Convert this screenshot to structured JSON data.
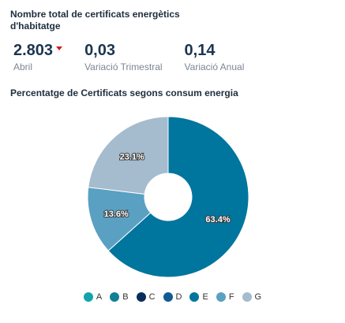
{
  "header": {
    "title": "Nombre total de certificats energètics d'habitatge"
  },
  "kpis": [
    {
      "value": "2.803",
      "label": "Abril",
      "trend": "down"
    },
    {
      "value": "0,03",
      "label": "Variació Trimestral"
    },
    {
      "value": "0,14",
      "label": "Variació Anual"
    }
  ],
  "chart_data": {
    "type": "pie",
    "title": "Percentatge de Certificats segons consum energia",
    "donut": true,
    "categories": [
      "A",
      "B",
      "C",
      "D",
      "E",
      "F",
      "G"
    ],
    "values": [
      0,
      0,
      0,
      0,
      63.4,
      13.6,
      23.1
    ],
    "data_labels": [
      "",
      "",
      "",
      "",
      "63.4%",
      "13.6%",
      "23.1%"
    ],
    "colors": [
      "#11a4ad",
      "#127f97",
      "#0b2d5a",
      "#125a94",
      "#00759e",
      "#5aa0c2",
      "#a4bccd"
    ],
    "legend": "bottom"
  }
}
